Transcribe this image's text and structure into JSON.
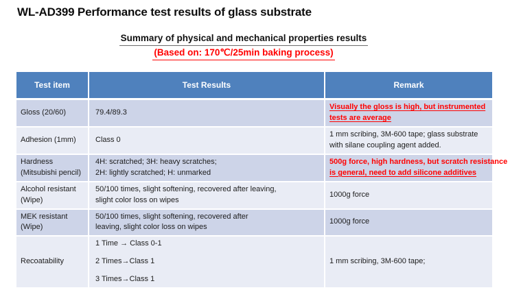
{
  "slide": {
    "title": "WL-AD399 Performance test results of glass substrate",
    "subtitle": "Summary of physical and mechanical properties results",
    "baking_note": "(Based on: 170℃/25min baking process)"
  },
  "colors": {
    "header_bg": "#4f81bd",
    "header_text": "#ffffff",
    "band_dark": "#cdd4e8",
    "band_light": "#e9ecf5",
    "accent_red": "#ff0000"
  },
  "table": {
    "headers": [
      "Test item",
      "Test Results",
      "Remark"
    ],
    "rows": [
      {
        "item": [
          "Gloss (20/60)"
        ],
        "results": [
          "79.4/89.3"
        ],
        "remark": [
          {
            "text": "Visually the gloss is high, but instrumented",
            "red": true,
            "underline": true,
            "nowrap": true
          },
          {
            "text": "tests are average",
            "red": true,
            "underline": true,
            "nowrap": true
          }
        ]
      },
      {
        "item": [
          "Adhesion (1mm)"
        ],
        "results": [
          "Class 0"
        ],
        "remark": [
          {
            "text": "1 mm scribing, 3M-600 tape; glass substrate",
            "nowrap": true
          },
          {
            "text": "with silane coupling agent added.",
            "nowrap": true
          }
        ]
      },
      {
        "item": [
          "Hardness",
          "(Mitsubishi pencil)"
        ],
        "results": [
          {
            "text": "4H: scratched; 3H: heavy scratches;",
            "nowrap": true
          },
          {
            "text": "2H: lightly scratched; H: unmarked",
            "nowrap": true
          }
        ],
        "remark": [
          {
            "text": "500g force, high hardness, but scratch resistance",
            "red": true,
            "nowrap": true
          },
          {
            "text": "is general, need to add silicone additives",
            "red": true,
            "underline": true,
            "nowrap": true
          }
        ]
      },
      {
        "item": [
          "Alcohol resistant",
          "(Wipe)"
        ],
        "results": [
          {
            "text": "50/100 times, slight softening, recovered after leaving,",
            "nowrap": true
          },
          {
            "text": "slight color loss on wipes",
            "nowrap": true
          }
        ],
        "remark": [
          "1000g force"
        ]
      },
      {
        "item": [
          "MEK resistant",
          "(Wipe)"
        ],
        "results": [
          {
            "text": "50/100 times, slight softening, recovered after",
            "nowrap": true
          },
          {
            "text": "leaving, slight color loss on wipes",
            "nowrap": true
          }
        ],
        "remark": [
          "1000g force"
        ]
      },
      {
        "item": [
          "Recoatability"
        ],
        "results": [
          "1 Time → Class 0-1",
          "2 Times→Class 1",
          "3 Times→Class 1"
        ],
        "remark": [
          "1 mm scribing, 3M-600 tape;"
        ]
      }
    ]
  }
}
